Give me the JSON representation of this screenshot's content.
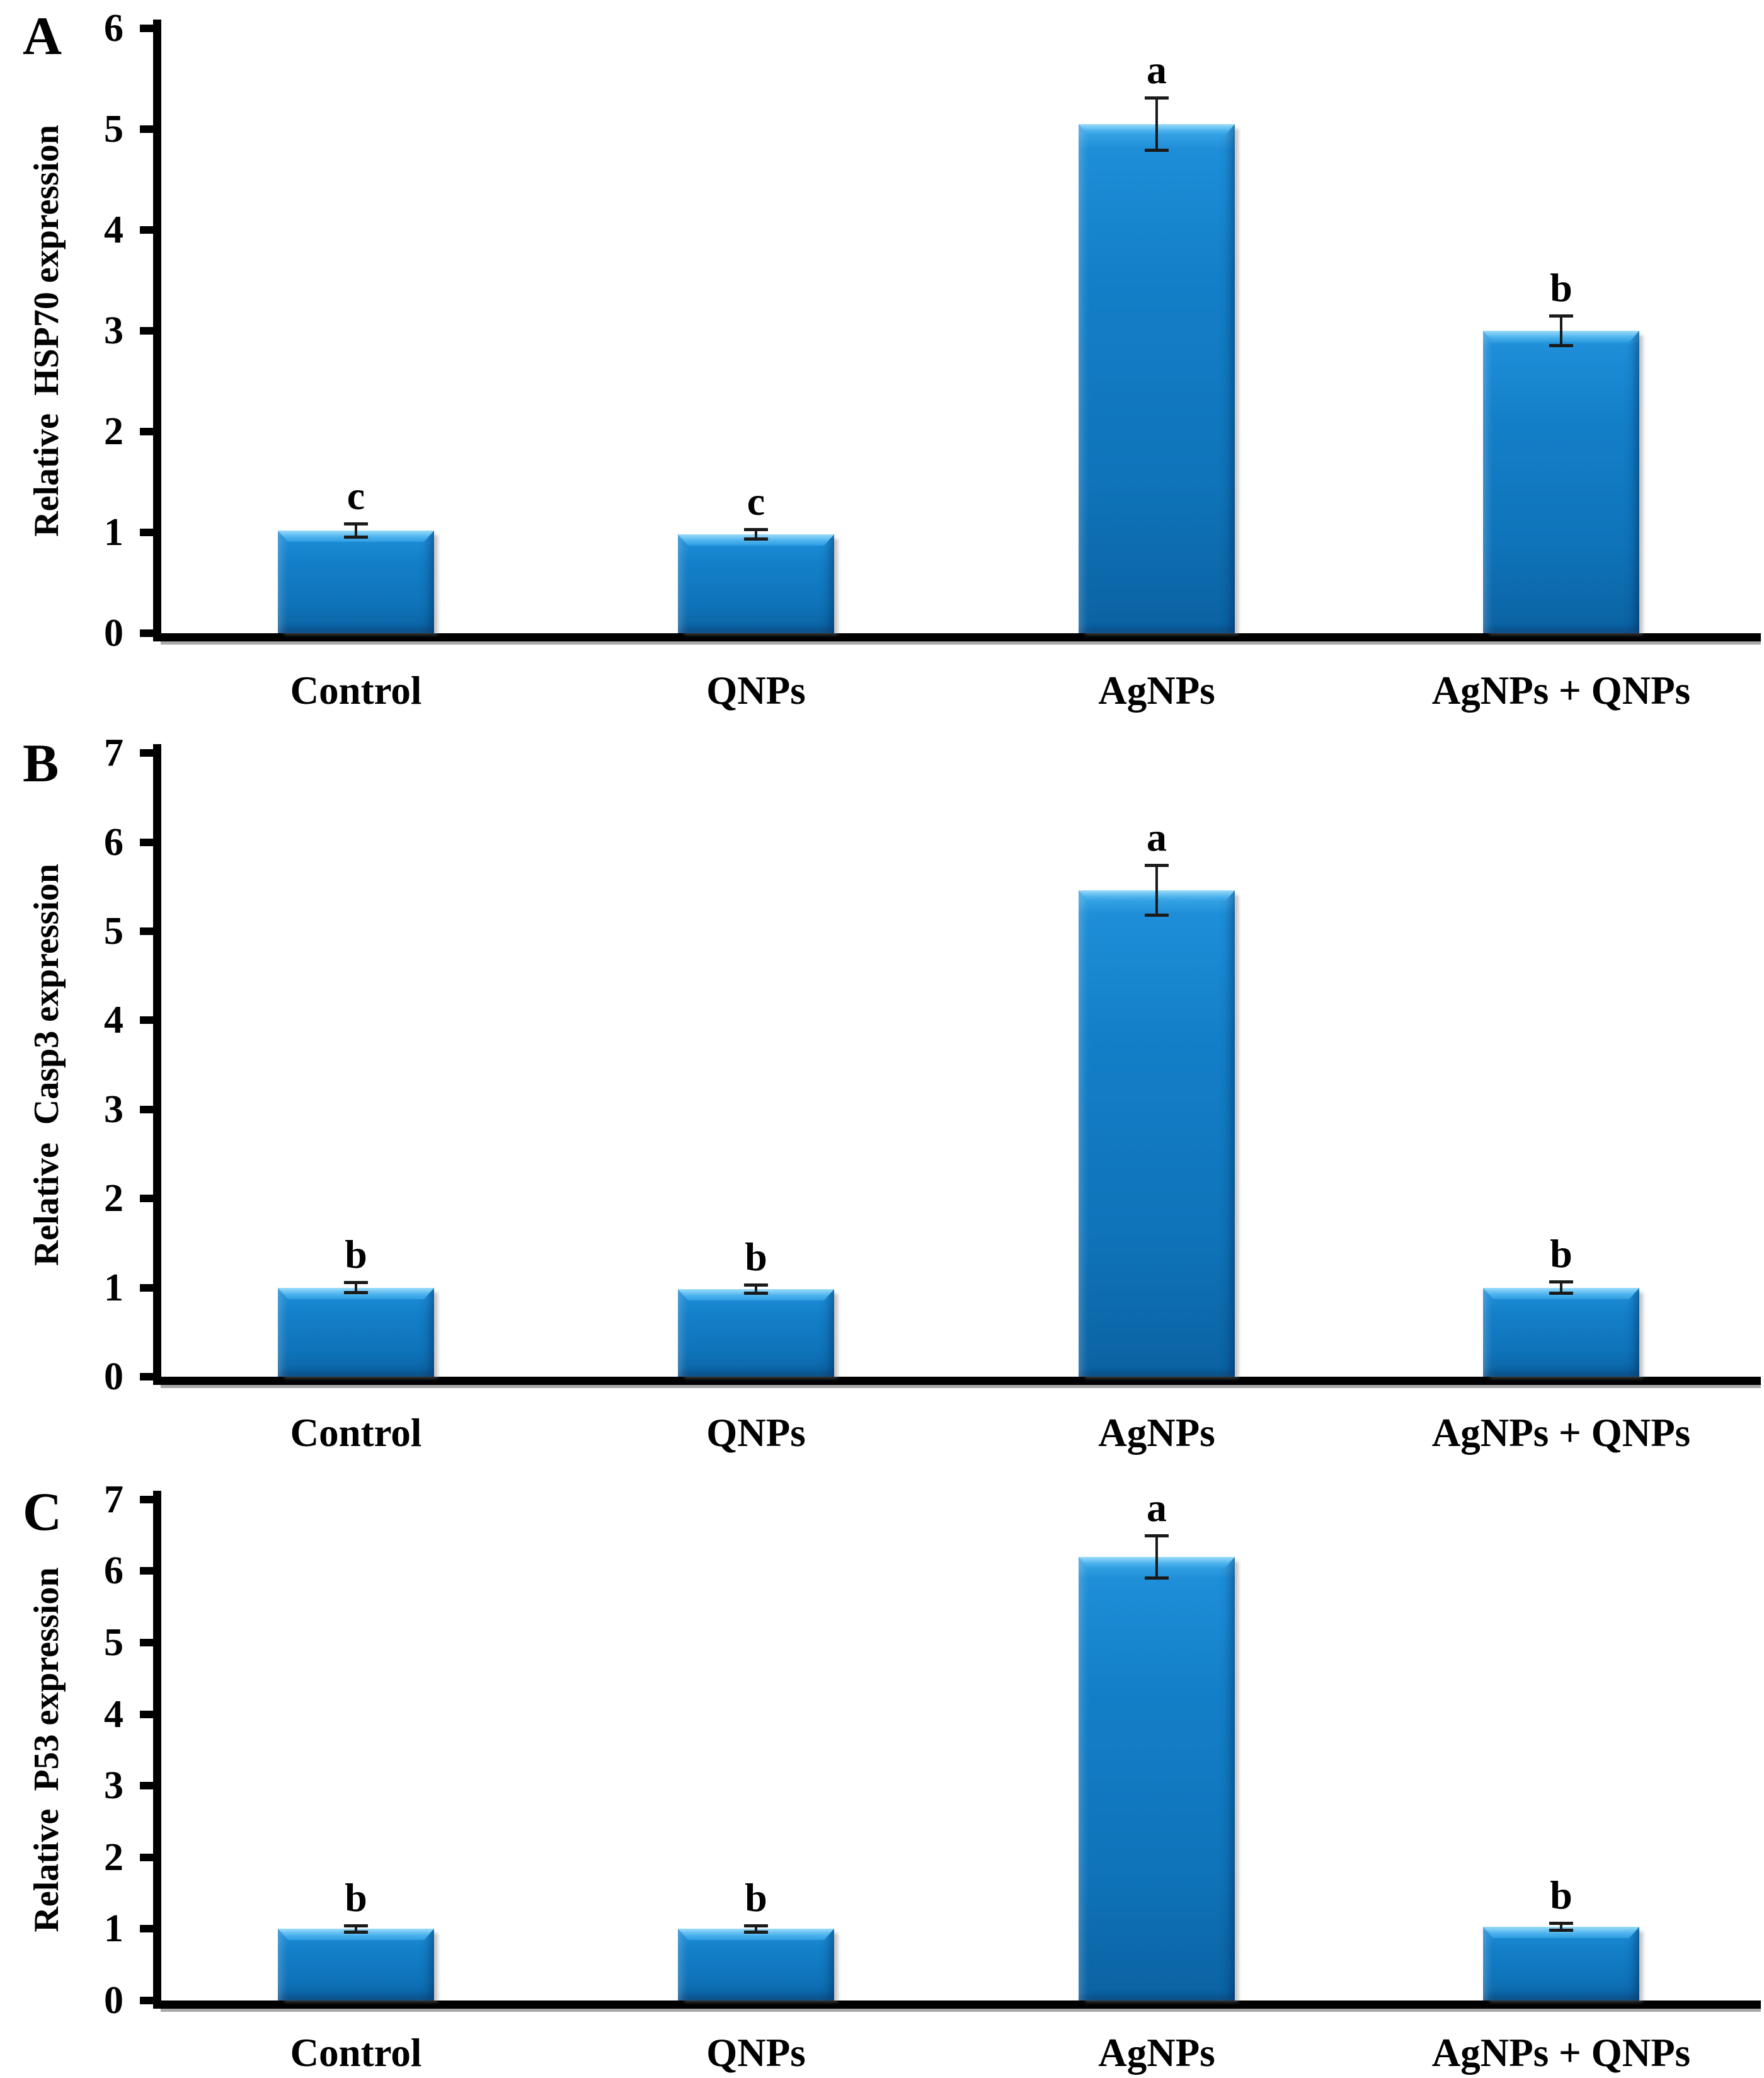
{
  "colors": {
    "background": "#ffffff",
    "axis": "#000000",
    "text": "#000000",
    "error_bar": "#1a1a1a",
    "baseline_shadow": "#a9a9a9",
    "bar_bevel_highlight": "#9bdcfa",
    "bar_body_top": "#45aeea",
    "bar_body_upper": "#1e8ed8",
    "bar_body_mid": "#137fc8",
    "bar_body_lower": "#0f74ba",
    "bar_body_bottom": "#0b62a2"
  },
  "chart_data": [
    {
      "type": "bar",
      "panel_label": "A",
      "title": "",
      "xlabel": "",
      "ylabel": "Relative  HSP70 expression",
      "categories": [
        "Control",
        "QNPs",
        "AgNPs",
        "AgNPs + QNPs"
      ],
      "values": [
        1.02,
        0.98,
        5.05,
        3.0
      ],
      "errors": [
        0.07,
        0.05,
        0.26,
        0.15
      ],
      "sig_letters": [
        "c",
        "c",
        "a",
        "b"
      ],
      "ylim": [
        0,
        6
      ],
      "yticks": [
        0,
        1,
        2,
        3,
        4,
        5,
        6
      ],
      "grid": "off",
      "legend": "none"
    },
    {
      "type": "bar",
      "panel_label": "B",
      "title": "",
      "xlabel": "",
      "ylabel": "Relative  Casp3 expression",
      "categories": [
        "Control",
        "QNPs",
        "AgNPs",
        "AgNPs + QNPs"
      ],
      "values": [
        1.0,
        0.98,
        5.46,
        1.0
      ],
      "errors": [
        0.06,
        0.05,
        0.28,
        0.07
      ],
      "sig_letters": [
        "b",
        "b",
        "a",
        "b"
      ],
      "ylim": [
        0,
        7
      ],
      "yticks": [
        0,
        1,
        2,
        3,
        4,
        5,
        6,
        7
      ],
      "grid": "off",
      "legend": "none"
    },
    {
      "type": "bar",
      "panel_label": "C",
      "title": "",
      "xlabel": "",
      "ylabel": "Relative  P53 expression",
      "categories": [
        "Control",
        "QNPs",
        "AgNPs",
        "AgNPs + QNPs"
      ],
      "values": [
        1.0,
        1.0,
        6.2,
        1.03
      ],
      "errors": [
        0.05,
        0.05,
        0.3,
        0.05
      ],
      "sig_letters": [
        "b",
        "b",
        "a",
        "b"
      ],
      "ylim": [
        0,
        7
      ],
      "yticks": [
        0,
        1,
        2,
        3,
        4,
        5,
        6,
        7
      ],
      "grid": "off",
      "legend": "none"
    }
  ]
}
